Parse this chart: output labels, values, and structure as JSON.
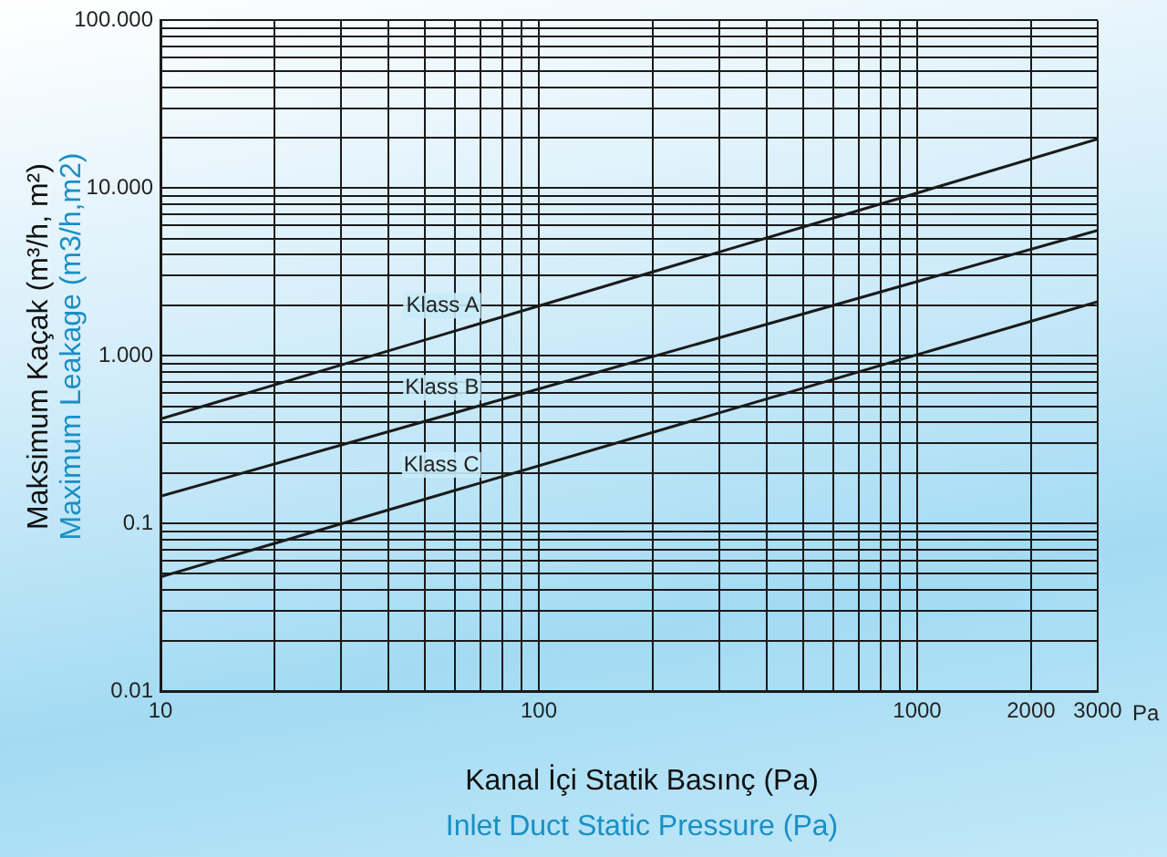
{
  "chart_data": {
    "type": "line",
    "xlabel": "Kanal İçi Statik Basınç (Pa)",
    "ylabel": "Maksimum Kaçak (m³/h, m²)",
    "log": "xy",
    "grid": true,
    "legend": false,
    "marker": "none",
    "line_style": "solid",
    "x": [
      10,
      3000
    ],
    "series": [
      {
        "name": "Klass A",
        "color": "#1a1a1a",
        "values": [
          0.42,
          19.6
        ]
      },
      {
        "name": "Klass B",
        "color": "#1a1a1a",
        "values": [
          0.145,
          5.6
        ]
      },
      {
        "name": "Klass C",
        "color": "#1a1a1a",
        "values": [
          0.048,
          2.1
        ]
      }
    ],
    "xlim": [
      10,
      3000
    ],
    "ylim": [
      0.01,
      100
    ],
    "xticks": [
      10,
      {
        "value": 20,
        "label": null
      },
      {
        "value": 30,
        "label": null
      },
      {
        "value": 40,
        "label": null
      },
      {
        "value": 50,
        "label": null
      },
      {
        "value": 60,
        "label": null
      },
      {
        "value": 70,
        "label": null
      },
      {
        "value": 80,
        "label": null
      },
      {
        "value": 90,
        "label": null
      },
      100,
      {
        "value": 200,
        "label": null
      },
      {
        "value": 300,
        "label": null
      },
      {
        "value": 400,
        "label": null
      },
      {
        "value": 500,
        "label": null
      },
      {
        "value": 600,
        "label": null
      },
      {
        "value": 700,
        "label": null
      },
      {
        "value": 800,
        "label": null
      },
      {
        "value": 900,
        "label": null
      },
      1000,
      2000,
      3000
    ],
    "yticks": [
      0.01,
      {
        "value": 0.02,
        "label": null
      },
      {
        "value": 0.03,
        "label": null
      },
      {
        "value": 0.04,
        "label": null
      },
      {
        "value": 0.05,
        "label": null
      },
      {
        "value": 0.06,
        "label": null
      },
      {
        "value": 0.07,
        "label": null
      },
      {
        "value": 0.08,
        "label": null
      },
      {
        "value": 0.09,
        "label": null
      },
      0.1,
      {
        "value": 0.2,
        "label": null
      },
      {
        "value": 0.3,
        "label": null
      },
      {
        "value": 0.4,
        "label": null
      },
      {
        "value": 0.5,
        "label": null
      },
      {
        "value": 0.6,
        "label": null
      },
      {
        "value": 0.7,
        "label": null
      },
      {
        "value": 0.8,
        "label": null
      },
      {
        "value": 0.9,
        "label": null
      },
      {
        "value": 1,
        "label": "1.000"
      },
      {
        "value": 2,
        "label": null
      },
      {
        "value": 3,
        "label": null
      },
      {
        "value": 4,
        "label": null
      },
      {
        "value": 5,
        "label": null
      },
      {
        "value": 6,
        "label": null
      },
      {
        "value": 7,
        "label": null
      },
      {
        "value": 8,
        "label": null
      },
      {
        "value": 9,
        "label": null
      },
      {
        "value": 10,
        "label": "10.000"
      },
      {
        "value": 20,
        "label": null
      },
      {
        "value": 30,
        "label": null
      },
      {
        "value": 40,
        "label": null
      },
      {
        "value": 50,
        "label": null
      },
      {
        "value": 60,
        "label": null
      },
      {
        "value": 70,
        "label": null
      },
      {
        "value": 80,
        "label": null
      },
      {
        "value": 90,
        "label": null
      },
      {
        "value": 100,
        "label": "100.000"
      }
    ],
    "annotations": [
      "Maximum Leakage (m3/h,m2)",
      "Inlet Duct Static Pressure (Pa)",
      "Pa"
    ]
  }
}
